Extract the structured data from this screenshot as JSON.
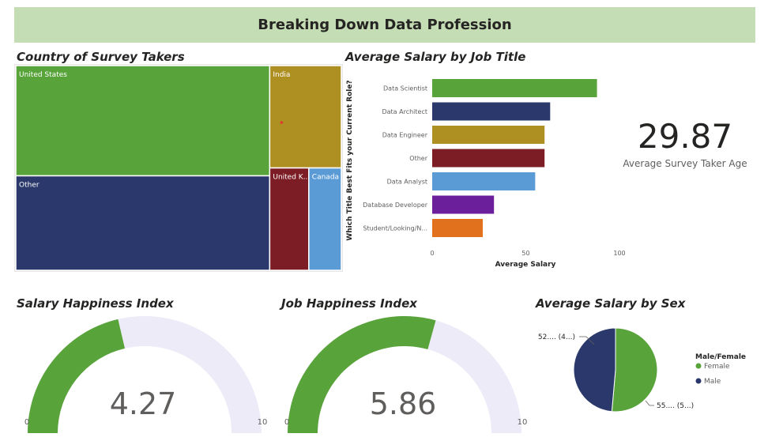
{
  "dashboard_title": "Breaking Down Data Profession",
  "treemap": {
    "title": "Country of Survey Takers",
    "colors": [
      "#58a33a",
      "#2b386b",
      "#ad8f22",
      "#7c1c24",
      "#5b9bd5"
    ]
  },
  "kpi": {
    "value": "29.87",
    "label": "Average Survey Taker Age"
  },
  "gauges": [
    {
      "title": "Salary Happiness Index",
      "value": 4.27,
      "display": "4.27",
      "min_label": "0",
      "max_label": "10",
      "min": 0,
      "max": 10,
      "fill_color": "#58a33a",
      "track_color": "#edebf8"
    },
    {
      "title": "Job Happiness Index",
      "value": 5.86,
      "display": "5.86",
      "min_label": "0",
      "max_label": "10",
      "min": 0,
      "max": 10,
      "fill_color": "#58a33a",
      "track_color": "#edebf8"
    }
  ],
  "pie": {
    "title": "Average Salary by Sex",
    "legend_title": "Male/Female",
    "slice_labels": [
      "55.... (5...)",
      "52.... (4...)"
    ]
  },
  "chart_data": [
    {
      "type": "treemap",
      "title": "Country of Survey Takers",
      "categories": [
        "United States",
        "Other",
        "India",
        "United K...",
        "Canada"
      ],
      "values": [
        42,
        36,
        11,
        6,
        5
      ]
    },
    {
      "type": "bar",
      "orientation": "horizontal",
      "title": "Average Salary by Job Title",
      "categories": [
        "Data Scientist",
        "Data Architect",
        "Data Engineer",
        "Other",
        "Data Analyst",
        "Database Developer",
        "Student/Looking/N..."
      ],
      "values": [
        88,
        63,
        60,
        60,
        55,
        33,
        27
      ],
      "colors": [
        "#58a33a",
        "#2b386b",
        "#ad8f22",
        "#7c1c24",
        "#5b9bd5",
        "#6b1f9b",
        "#e2711d"
      ],
      "xlabel": "Average Salary",
      "ylabel": "Which Title Best Fits your Current Role?",
      "xticks": [
        "0",
        "50",
        "100"
      ],
      "xlim": [
        0,
        100
      ]
    },
    {
      "type": "pie",
      "title": "Average Salary by Sex",
      "categories": [
        "Female",
        "Male"
      ],
      "values": [
        55,
        52
      ],
      "colors": [
        "#58a33a",
        "#2b386b"
      ],
      "legend": "right"
    }
  ]
}
